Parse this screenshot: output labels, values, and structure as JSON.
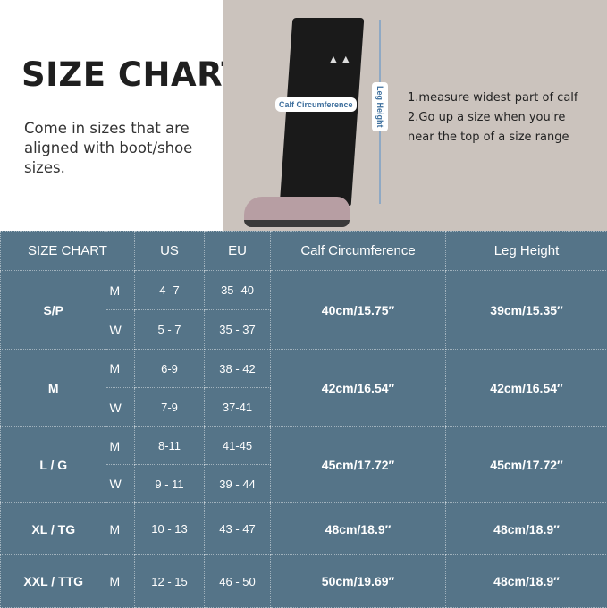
{
  "title": "SIZE CHART",
  "description": "Come in sizes that are aligned with boot/shoe sizes.",
  "photo": {
    "calf_label": "Calf Circumference",
    "height_label": "Leg Height",
    "notes": [
      "1.measure widest part of calf",
      "2.Go up a size when you're",
      "near the top of a size range"
    ]
  },
  "table": {
    "headers": [
      "SIZE CHART",
      "US",
      "EU",
      "Calf Circumference",
      "Leg Height"
    ],
    "rows": [
      {
        "size": "S/P",
        "calf": "40cm/15.75″",
        "leg": "39cm/15.35″",
        "sub": [
          {
            "g": "M",
            "us": "4 -7",
            "eu": "35- 40"
          },
          {
            "g": "W",
            "us": "5 - 7",
            "eu": "35 - 37"
          }
        ]
      },
      {
        "size": "M",
        "calf": "42cm/16.54″",
        "leg": "42cm/16.54″",
        "sub": [
          {
            "g": "M",
            "us": "6-9",
            "eu": "38 - 42"
          },
          {
            "g": "W",
            "us": "7-9",
            "eu": "37-41"
          }
        ]
      },
      {
        "size": "L / G",
        "calf": "45cm/17.72″",
        "leg": "45cm/17.72″",
        "sub": [
          {
            "g": "M",
            "us": "8-11",
            "eu": "41-45"
          },
          {
            "g": "W",
            "us": "9 - 11",
            "eu": "39 - 44"
          }
        ]
      },
      {
        "size": "XL / TG",
        "calf": "48cm/18.9″",
        "leg": "48cm/18.9″",
        "sub": [
          {
            "g": "M",
            "us": "10 - 13",
            "eu": "43 - 47"
          }
        ]
      },
      {
        "size": "XXL / TTG",
        "calf": "50cm/19.69″",
        "leg": "48cm/18.9″",
        "sub": [
          {
            "g": "M",
            "us": "12 - 15",
            "eu": "46 - 50"
          }
        ]
      }
    ]
  }
}
